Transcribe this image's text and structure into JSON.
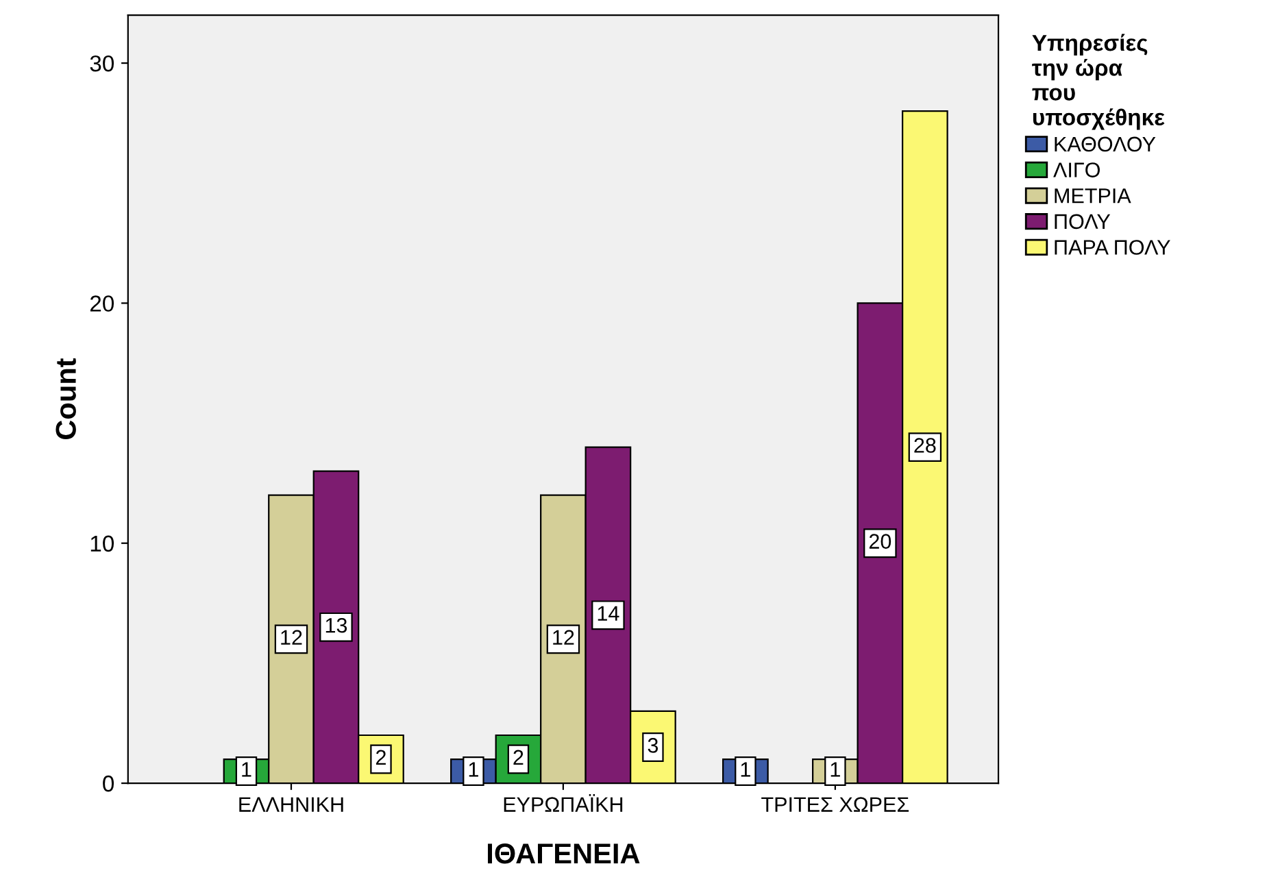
{
  "chart_data": {
    "type": "bar",
    "xlabel": "ΙΘΑΓΕΝΕΙΑ",
    "ylabel": "Count",
    "legend_title": "Υπηρεσίες\nτην ώρα\nπου\nυποσχέθηκε",
    "categories": [
      "ΕΛΛΗΝΙΚΗ",
      "ΕΥΡΩΠΑΪΚΗ",
      "ΤΡΙΤΕΣ ΧΩΡΕΣ"
    ],
    "series": [
      {
        "name": "ΚΑΘΟΛΟΥ",
        "color": "#3c5ba6",
        "values": [
          null,
          1,
          1
        ]
      },
      {
        "name": "ΛΙΓΟ",
        "color": "#26a83a",
        "values": [
          1,
          2,
          null
        ]
      },
      {
        "name": "ΜΕΤΡΙΑ",
        "color": "#d4cf98",
        "values": [
          12,
          12,
          1
        ]
      },
      {
        "name": "ΠΟΛΥ",
        "color": "#7d1c70",
        "values": [
          13,
          14,
          20
        ]
      },
      {
        "name": "ΠΑΡΑ ΠΟΛΥ",
        "color": "#fbf873",
        "values": [
          2,
          3,
          28
        ]
      }
    ],
    "ylim": [
      0,
      32
    ],
    "yticks": [
      0,
      10,
      20,
      30
    ],
    "grid": false,
    "legend": "right",
    "data_labels": true
  }
}
